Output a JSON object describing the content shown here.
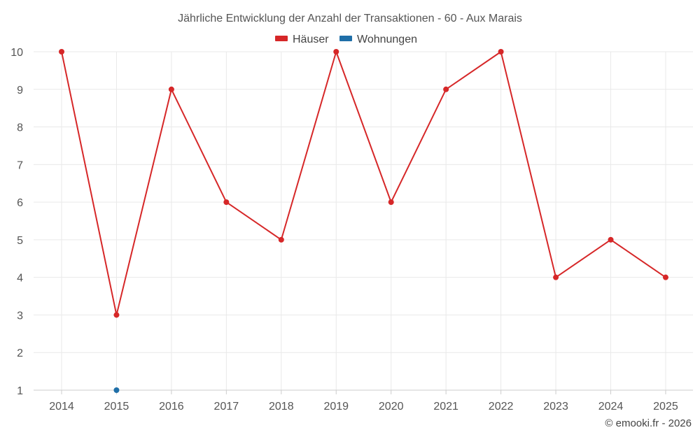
{
  "chart_data": {
    "type": "line",
    "title": "Jährliche Entwicklung der Anzahl der Transaktionen - 60 - Aux Marais",
    "xlabel": "",
    "ylabel": "",
    "categories": [
      "2014",
      "2015",
      "2016",
      "2017",
      "2018",
      "2019",
      "2020",
      "2021",
      "2022",
      "2023",
      "2024",
      "2025"
    ],
    "ylim": [
      1,
      10
    ],
    "yticks": [
      1,
      2,
      3,
      4,
      5,
      6,
      7,
      8,
      9,
      10
    ],
    "grid": true,
    "legend_position": "top-center",
    "series": [
      {
        "name": "Häuser",
        "color": "#d62728",
        "values": [
          10,
          3,
          9,
          6,
          5,
          10,
          6,
          9,
          10,
          4,
          5,
          4
        ]
      },
      {
        "name": "Wohnungen",
        "color": "#1f6fa8",
        "values": [
          null,
          1,
          null,
          null,
          null,
          null,
          null,
          null,
          null,
          null,
          null,
          null
        ]
      }
    ]
  },
  "credit": "© emooki.fr - 2026"
}
